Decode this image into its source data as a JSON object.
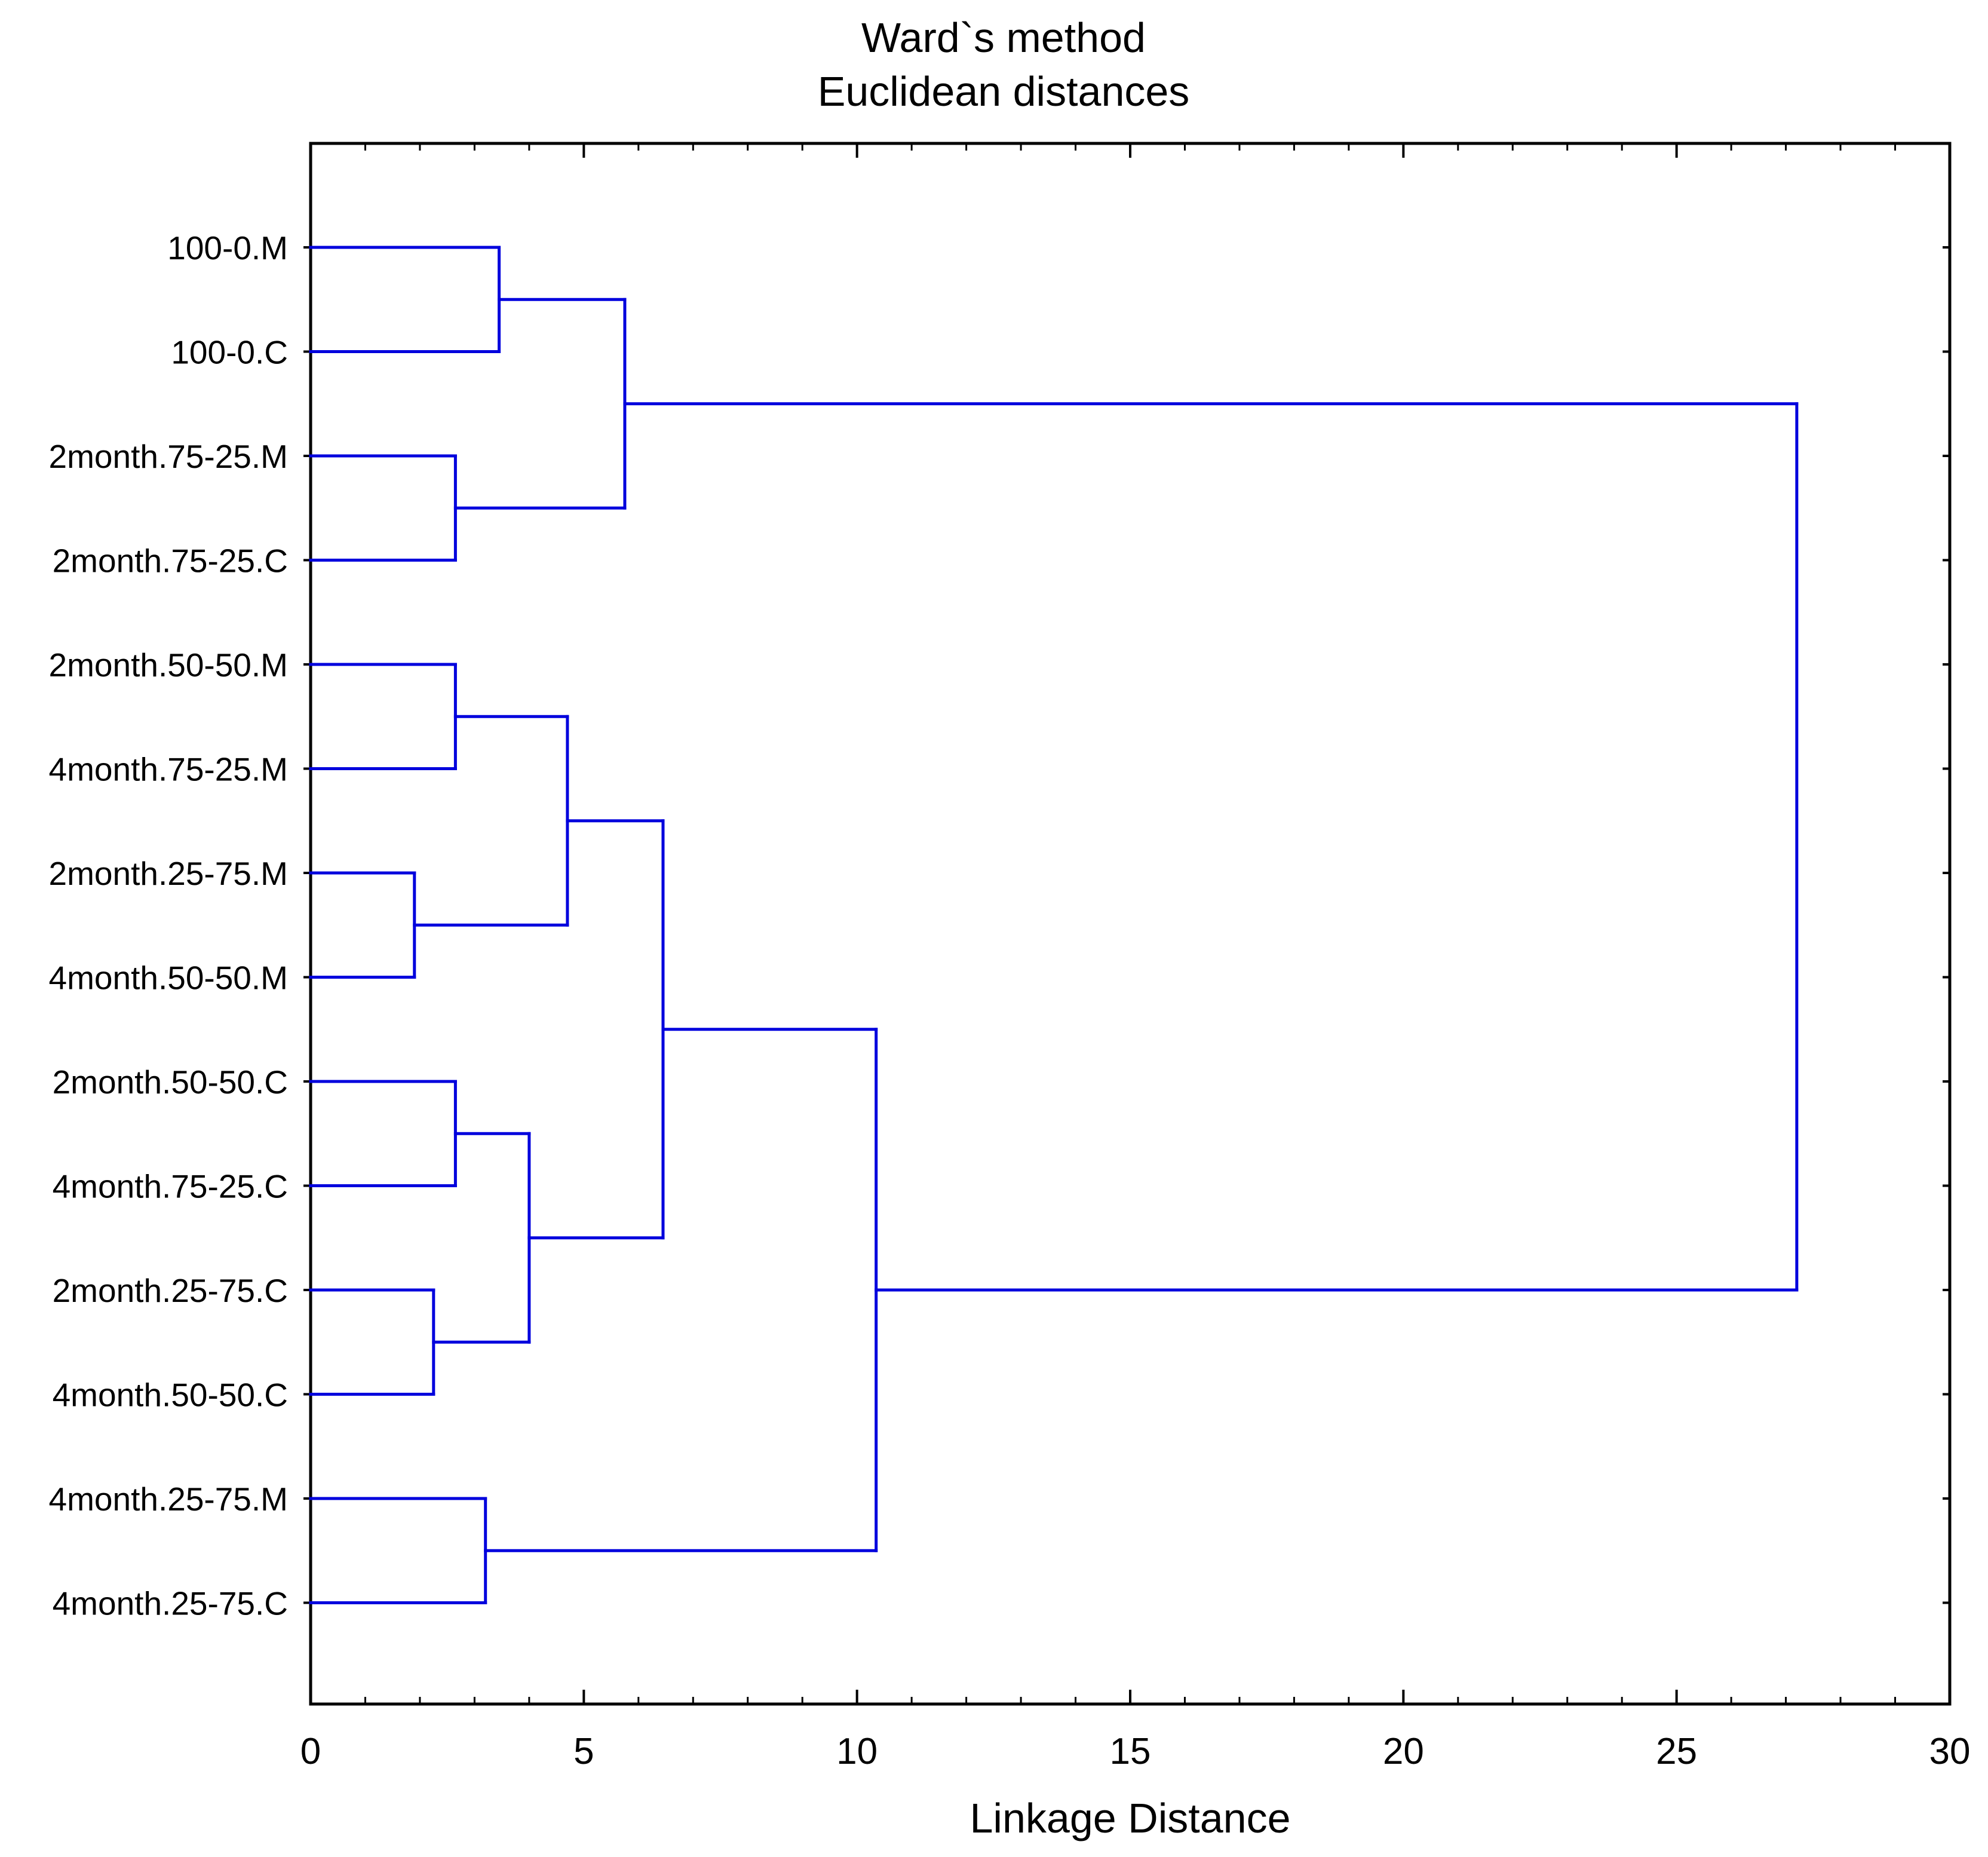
{
  "chart_data": {
    "type": "dendrogram",
    "title": "Ward`s method",
    "subtitle": "Euclidean distances",
    "xlabel": "Linkage Distance",
    "xlim": [
      0,
      30
    ],
    "x_ticks": [
      0,
      5,
      10,
      15,
      20,
      25,
      30
    ],
    "orientation": "horizontal",
    "line_color": "#0000dd",
    "leaves": [
      "100-0.M",
      "100-0.C",
      "2month.75-25.M",
      "2month.75-25.C",
      "2month.50-50.M",
      "4month.75-25.M",
      "2month.25-75.M",
      "4month.50-50.M",
      "2month.50-50.C",
      "4month.75-25.C",
      "2month.25-75.C",
      "4month.50-50.C",
      "4month.25-75.M",
      "4month.25-75.C"
    ],
    "merges": [
      {
        "left": 0,
        "right": 1,
        "height": 3.45
      },
      {
        "left": 2,
        "right": 3,
        "height": 2.65
      },
      {
        "left": 14,
        "right": 15,
        "height": 5.75
      },
      {
        "left": 4,
        "right": 5,
        "height": 2.65
      },
      {
        "left": 6,
        "right": 7,
        "height": 1.9
      },
      {
        "left": 17,
        "right": 18,
        "height": 4.7
      },
      {
        "left": 8,
        "right": 9,
        "height": 2.65
      },
      {
        "left": 10,
        "right": 11,
        "height": 2.25
      },
      {
        "left": 20,
        "right": 21,
        "height": 4.0
      },
      {
        "left": 19,
        "right": 22,
        "height": 6.45
      },
      {
        "left": 12,
        "right": 13,
        "height": 3.2
      },
      {
        "left": 23,
        "right": 24,
        "height": 10.35
      },
      {
        "left": 16,
        "right": 25,
        "height": 27.2
      }
    ]
  }
}
